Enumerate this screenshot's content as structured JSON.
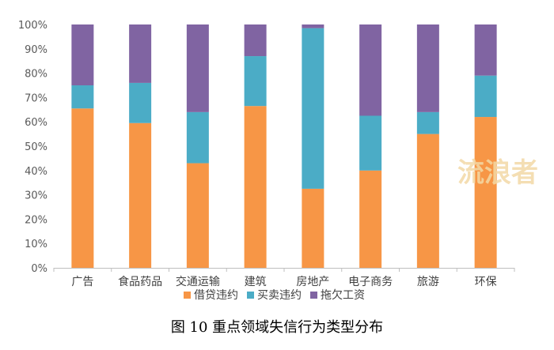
{
  "chart_data": {
    "type": "bar",
    "stacked": true,
    "percent": true,
    "categories": [
      "广告",
      "食品药品",
      "交通运输",
      "建筑",
      "房地产",
      "电子商务",
      "旅游",
      "环保"
    ],
    "series": [
      {
        "name": "借贷违约",
        "color": "#F79646",
        "values": [
          65.5,
          59.5,
          43,
          66.5,
          32.5,
          40,
          55,
          62
        ]
      },
      {
        "name": "买卖违约",
        "color": "#4BACC6",
        "values": [
          9.5,
          16.5,
          21,
          20.5,
          66,
          22.5,
          9,
          17
        ]
      },
      {
        "name": "拖欠工资",
        "color": "#8064A2",
        "values": [
          25,
          24,
          36,
          13,
          1.5,
          37.5,
          36,
          21
        ]
      }
    ],
    "y_ticks": [
      "0%",
      "10%",
      "20%",
      "30%",
      "40%",
      "50%",
      "60%",
      "70%",
      "80%",
      "90%",
      "100%"
    ],
    "ylim": [
      0,
      100
    ],
    "grid": false,
    "legend": "bottom",
    "title": ""
  },
  "caption": "图 10  重点领域失信行为类型分布",
  "watermark": "流浪者"
}
